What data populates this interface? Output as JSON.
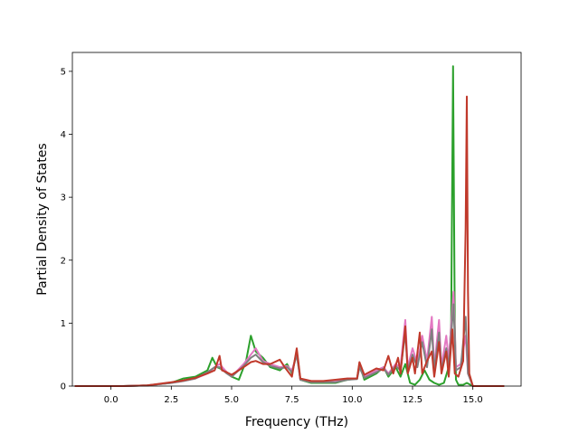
{
  "chart_data": {
    "type": "line",
    "title": "",
    "xlabel": "Frequency (THz)",
    "ylabel": "Partial Density of States",
    "xlim": [
      -1.6,
      17.0
    ],
    "ylim": [
      0,
      5.3
    ],
    "x_ticks": [
      {
        "value": 0.0,
        "label": "0.0"
      },
      {
        "value": 2.5,
        "label": "2.5"
      },
      {
        "value": 5.0,
        "label": "5.0"
      },
      {
        "value": 7.5,
        "label": "7.5"
      },
      {
        "value": 10.0,
        "label": "10.0"
      },
      {
        "value": 12.5,
        "label": "12.5"
      },
      {
        "value": 15.0,
        "label": "15.0"
      }
    ],
    "y_ticks": [
      {
        "value": 0,
        "label": "0"
      },
      {
        "value": 1,
        "label": "1"
      },
      {
        "value": 2,
        "label": "2"
      },
      {
        "value": 3,
        "label": "3"
      },
      {
        "value": 4,
        "label": "4"
      },
      {
        "value": 5,
        "label": "5"
      }
    ],
    "grid": false,
    "legend": "none",
    "series": [
      {
        "color": "#2ca02c",
        "points": [
          [
            -1.5,
            0
          ],
          [
            0.5,
            0
          ],
          [
            1.5,
            0.01
          ],
          [
            2.5,
            0.05
          ],
          [
            3.0,
            0.12
          ],
          [
            3.5,
            0.15
          ],
          [
            4.0,
            0.25
          ],
          [
            4.2,
            0.45
          ],
          [
            4.4,
            0.3
          ],
          [
            4.7,
            0.25
          ],
          [
            5.0,
            0.15
          ],
          [
            5.3,
            0.1
          ],
          [
            5.6,
            0.4
          ],
          [
            5.8,
            0.8
          ],
          [
            6.0,
            0.55
          ],
          [
            6.3,
            0.45
          ],
          [
            6.6,
            0.3
          ],
          [
            7.0,
            0.25
          ],
          [
            7.3,
            0.35
          ],
          [
            7.5,
            0.2
          ],
          [
            7.7,
            0.55
          ],
          [
            7.85,
            0.1
          ],
          [
            8.3,
            0.05
          ],
          [
            8.8,
            0.05
          ],
          [
            9.3,
            0.05
          ],
          [
            9.8,
            0.1
          ],
          [
            10.2,
            0.12
          ],
          [
            10.3,
            0.35
          ],
          [
            10.5,
            0.1
          ],
          [
            11.0,
            0.2
          ],
          [
            11.3,
            0.3
          ],
          [
            11.5,
            0.15
          ],
          [
            11.8,
            0.3
          ],
          [
            12.0,
            0.15
          ],
          [
            12.2,
            0.35
          ],
          [
            12.4,
            0.05
          ],
          [
            12.6,
            0.02
          ],
          [
            12.8,
            0.1
          ],
          [
            13.0,
            0.25
          ],
          [
            13.2,
            0.1
          ],
          [
            13.4,
            0.05
          ],
          [
            13.6,
            0.02
          ],
          [
            13.8,
            0.05
          ],
          [
            14.0,
            0.3
          ],
          [
            14.1,
            1.0
          ],
          [
            14.18,
            5.08
          ],
          [
            14.25,
            1.0
          ],
          [
            14.3,
            0.1
          ],
          [
            14.4,
            0.02
          ],
          [
            14.6,
            0.02
          ],
          [
            14.75,
            0.05
          ],
          [
            15.0,
            0
          ],
          [
            16.3,
            0
          ]
        ]
      },
      {
        "color": "#e377c2",
        "points": [
          [
            -1.5,
            0
          ],
          [
            0.5,
            0
          ],
          [
            1.5,
            0.01
          ],
          [
            2.5,
            0.05
          ],
          [
            3.0,
            0.08
          ],
          [
            3.5,
            0.12
          ],
          [
            4.0,
            0.2
          ],
          [
            4.3,
            0.3
          ],
          [
            4.5,
            0.35
          ],
          [
            4.8,
            0.22
          ],
          [
            5.0,
            0.15
          ],
          [
            5.5,
            0.35
          ],
          [
            5.8,
            0.5
          ],
          [
            6.0,
            0.6
          ],
          [
            6.3,
            0.4
          ],
          [
            6.6,
            0.35
          ],
          [
            7.0,
            0.3
          ],
          [
            7.3,
            0.32
          ],
          [
            7.5,
            0.25
          ],
          [
            7.7,
            0.5
          ],
          [
            7.85,
            0.1
          ],
          [
            8.3,
            0.07
          ],
          [
            8.8,
            0.07
          ],
          [
            9.3,
            0.07
          ],
          [
            9.8,
            0.12
          ],
          [
            10.2,
            0.12
          ],
          [
            10.3,
            0.3
          ],
          [
            10.5,
            0.15
          ],
          [
            11.0,
            0.25
          ],
          [
            11.3,
            0.3
          ],
          [
            11.5,
            0.2
          ],
          [
            11.8,
            0.35
          ],
          [
            12.0,
            0.3
          ],
          [
            12.2,
            1.05
          ],
          [
            12.3,
            0.3
          ],
          [
            12.5,
            0.6
          ],
          [
            12.7,
            0.35
          ],
          [
            12.9,
            0.8
          ],
          [
            13.1,
            0.4
          ],
          [
            13.3,
            1.1
          ],
          [
            13.4,
            0.3
          ],
          [
            13.6,
            1.05
          ],
          [
            13.7,
            0.3
          ],
          [
            13.9,
            0.8
          ],
          [
            14.0,
            0.4
          ],
          [
            14.2,
            1.5
          ],
          [
            14.3,
            0.3
          ],
          [
            14.5,
            0.35
          ],
          [
            14.7,
            0.8
          ],
          [
            14.8,
            0.2
          ],
          [
            15.0,
            0
          ],
          [
            16.3,
            0
          ]
        ]
      },
      {
        "color": "#7f7f7f",
        "points": [
          [
            -1.5,
            0
          ],
          [
            0.5,
            0
          ],
          [
            1.5,
            0.01
          ],
          [
            2.5,
            0.05
          ],
          [
            3.0,
            0.08
          ],
          [
            3.5,
            0.12
          ],
          [
            4.0,
            0.22
          ],
          [
            4.3,
            0.3
          ],
          [
            4.5,
            0.3
          ],
          [
            4.8,
            0.2
          ],
          [
            5.0,
            0.15
          ],
          [
            5.5,
            0.32
          ],
          [
            5.8,
            0.45
          ],
          [
            6.0,
            0.5
          ],
          [
            6.3,
            0.38
          ],
          [
            6.6,
            0.32
          ],
          [
            7.0,
            0.28
          ],
          [
            7.3,
            0.3
          ],
          [
            7.5,
            0.22
          ],
          [
            7.7,
            0.5
          ],
          [
            7.85,
            0.1
          ],
          [
            8.3,
            0.06
          ],
          [
            8.8,
            0.06
          ],
          [
            9.3,
            0.06
          ],
          [
            9.8,
            0.1
          ],
          [
            10.2,
            0.11
          ],
          [
            10.3,
            0.3
          ],
          [
            10.5,
            0.13
          ],
          [
            11.0,
            0.22
          ],
          [
            11.3,
            0.28
          ],
          [
            11.5,
            0.18
          ],
          [
            11.8,
            0.32
          ],
          [
            12.0,
            0.25
          ],
          [
            12.2,
            0.85
          ],
          [
            12.3,
            0.25
          ],
          [
            12.5,
            0.5
          ],
          [
            12.7,
            0.3
          ],
          [
            12.9,
            0.7
          ],
          [
            13.1,
            0.3
          ],
          [
            13.3,
            0.9
          ],
          [
            13.4,
            0.25
          ],
          [
            13.6,
            0.85
          ],
          [
            13.7,
            0.25
          ],
          [
            13.9,
            0.6
          ],
          [
            14.0,
            0.3
          ],
          [
            14.2,
            1.3
          ],
          [
            14.3,
            0.25
          ],
          [
            14.5,
            0.3
          ],
          [
            14.7,
            1.1
          ],
          [
            14.8,
            0.2
          ],
          [
            15.0,
            0
          ],
          [
            16.3,
            0
          ]
        ]
      },
      {
        "color": "#c0392b",
        "points": [
          [
            -1.5,
            0
          ],
          [
            0.5,
            0
          ],
          [
            1.5,
            0.01
          ],
          [
            2.5,
            0.06
          ],
          [
            3.0,
            0.09
          ],
          [
            3.5,
            0.13
          ],
          [
            4.0,
            0.2
          ],
          [
            4.3,
            0.25
          ],
          [
            4.5,
            0.48
          ],
          [
            4.6,
            0.25
          ],
          [
            4.8,
            0.22
          ],
          [
            5.0,
            0.18
          ],
          [
            5.5,
            0.3
          ],
          [
            5.8,
            0.38
          ],
          [
            6.0,
            0.4
          ],
          [
            6.3,
            0.35
          ],
          [
            6.6,
            0.35
          ],
          [
            7.0,
            0.42
          ],
          [
            7.2,
            0.3
          ],
          [
            7.5,
            0.15
          ],
          [
            7.7,
            0.6
          ],
          [
            7.85,
            0.12
          ],
          [
            8.3,
            0.08
          ],
          [
            8.8,
            0.08
          ],
          [
            9.3,
            0.1
          ],
          [
            9.8,
            0.12
          ],
          [
            10.2,
            0.12
          ],
          [
            10.3,
            0.38
          ],
          [
            10.5,
            0.18
          ],
          [
            11.0,
            0.28
          ],
          [
            11.3,
            0.25
          ],
          [
            11.5,
            0.48
          ],
          [
            11.7,
            0.2
          ],
          [
            11.9,
            0.45
          ],
          [
            12.0,
            0.2
          ],
          [
            12.2,
            0.95
          ],
          [
            12.3,
            0.2
          ],
          [
            12.5,
            0.45
          ],
          [
            12.6,
            0.2
          ],
          [
            12.8,
            0.85
          ],
          [
            12.9,
            0.2
          ],
          [
            13.1,
            0.4
          ],
          [
            13.3,
            0.55
          ],
          [
            13.4,
            0.15
          ],
          [
            13.6,
            0.7
          ],
          [
            13.7,
            0.2
          ],
          [
            13.9,
            0.55
          ],
          [
            14.0,
            0.15
          ],
          [
            14.15,
            0.9
          ],
          [
            14.25,
            0.2
          ],
          [
            14.4,
            0.15
          ],
          [
            14.6,
            0.4
          ],
          [
            14.7,
            2.5
          ],
          [
            14.75,
            4.6
          ],
          [
            14.8,
            1.5
          ],
          [
            14.85,
            0.2
          ],
          [
            15.0,
            0
          ],
          [
            16.3,
            0
          ]
        ]
      }
    ]
  }
}
